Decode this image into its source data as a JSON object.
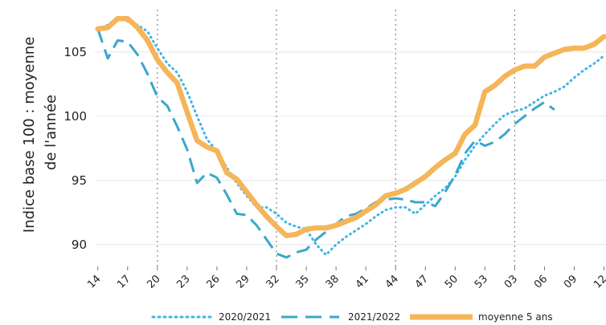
{
  "chart_data": {
    "type": "line",
    "ylabel_lines": [
      "Indice base 100 : moyenne",
      "de l'année"
    ],
    "xlabel": "",
    "title": "",
    "ylim": [
      88.3,
      108.3
    ],
    "yticks": [
      90,
      95,
      100,
      105
    ],
    "x_tick_labels": [
      "14",
      "17",
      "20",
      "23",
      "26",
      "29",
      "32",
      "35",
      "38",
      "41",
      "44",
      "47",
      "50",
      "53",
      "03",
      "06",
      "09",
      "12"
    ],
    "x_range": [
      13.7,
      65.2
    ],
    "vertical_dotted_lines_at": [
      20,
      32,
      44,
      56,
      68
    ],
    "series": [
      {
        "name": "2020/2021",
        "style": "dotted",
        "color": "#3fb6e6",
        "x": [
          14,
          15,
          16,
          17,
          18,
          19,
          20,
          21,
          22,
          23,
          24,
          25,
          26,
          27,
          28,
          29,
          30,
          31,
          32,
          33,
          34,
          35,
          36,
          37,
          38,
          39,
          40,
          41,
          42,
          43,
          44,
          45,
          46,
          47,
          48,
          49,
          50,
          51,
          52,
          53,
          54,
          55,
          56,
          57,
          58,
          59,
          60,
          61,
          62,
          63,
          64,
          65
        ],
        "values": [
          106.8,
          107.1,
          107.7,
          107.4,
          107.1,
          106.6,
          105.3,
          104.1,
          103.4,
          101.9,
          100.0,
          98.2,
          97.3,
          96.0,
          94.8,
          93.8,
          92.9,
          92.9,
          92.4,
          91.7,
          91.4,
          91.2,
          90.0,
          89.2,
          90.0,
          90.6,
          91.1,
          91.6,
          92.2,
          92.7,
          92.9,
          92.9,
          92.4,
          93.1,
          93.8,
          94.4,
          95.3,
          96.6,
          97.7,
          98.6,
          99.4,
          100.1,
          100.4,
          100.6,
          101.1,
          101.6,
          101.9,
          102.3,
          103.0,
          103.6,
          104.1,
          104.7
        ]
      },
      {
        "name": "2021/2022",
        "style": "dashed",
        "color": "#3aa7cc",
        "x": [
          14,
          15,
          16,
          17,
          18,
          19,
          20,
          21,
          22,
          23,
          24,
          25,
          26,
          27,
          28,
          29,
          30,
          31,
          32,
          33,
          34,
          35,
          36,
          37,
          38,
          39,
          40,
          41,
          42,
          43,
          44,
          45,
          46,
          47,
          48,
          49,
          50,
          51,
          52,
          53,
          54,
          55,
          56,
          57,
          58,
          59,
          60
        ],
        "values": [
          106.8,
          104.5,
          105.9,
          105.8,
          104.8,
          103.3,
          101.5,
          100.8,
          99.2,
          97.4,
          94.8,
          95.6,
          95.2,
          93.9,
          92.4,
          92.3,
          91.5,
          90.4,
          89.3,
          89.0,
          89.4,
          89.6,
          90.4,
          91.0,
          91.6,
          92.2,
          92.4,
          92.8,
          93.3,
          93.5,
          93.6,
          93.5,
          93.3,
          93.3,
          93.0,
          94.1,
          95.4,
          97.1,
          98.1,
          97.7,
          98.0,
          98.6,
          99.4,
          100.0,
          100.6,
          101.1,
          100.5
        ]
      },
      {
        "name": "moyenne 5 ans",
        "style": "solid",
        "color": "#f5b559",
        "x": [
          14,
          15,
          16,
          17,
          18,
          19,
          20,
          21,
          22,
          23,
          24,
          25,
          26,
          27,
          28,
          29,
          30,
          31,
          32,
          33,
          34,
          35,
          36,
          37,
          38,
          39,
          40,
          41,
          42,
          43,
          44,
          45,
          46,
          47,
          48,
          49,
          50,
          51,
          52,
          53,
          54,
          55,
          56,
          57,
          58,
          59,
          60,
          61,
          62,
          63,
          64,
          65
        ],
        "values": [
          106.8,
          106.9,
          107.6,
          107.6,
          106.9,
          105.9,
          104.4,
          103.4,
          102.6,
          100.3,
          98.1,
          97.6,
          97.3,
          95.6,
          95.1,
          94.1,
          93.1,
          92.2,
          91.4,
          90.7,
          90.8,
          91.2,
          91.3,
          91.3,
          91.5,
          91.8,
          92.1,
          92.6,
          93.1,
          93.8,
          94.0,
          94.3,
          94.8,
          95.3,
          96.0,
          96.6,
          97.1,
          98.6,
          99.3,
          101.9,
          102.4,
          103.1,
          103.6,
          103.9,
          103.9,
          104.6,
          104.9,
          105.2,
          105.3,
          105.3,
          105.6,
          106.2
        ]
      }
    ],
    "grid": "horizontal-light",
    "legend_position": "bottom"
  }
}
